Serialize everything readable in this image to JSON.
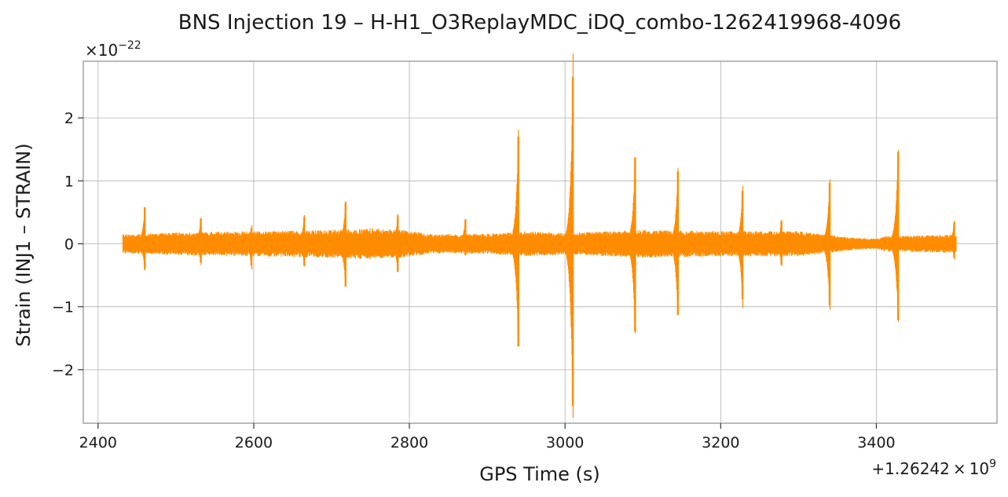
{
  "chart_data": {
    "type": "line",
    "title": "BNS Injection 19 – H-H1_O3ReplayMDC_iDQ_combo-1262419968-4096",
    "xlabel": "GPS Time (s)",
    "ylabel": "Strain (INJ1 – STRAIN)",
    "x_offset_label": {
      "base": "+1.26242 × 10",
      "exp": "9"
    },
    "y_scale_label": {
      "base": "×10",
      "exp": "−22"
    },
    "x_ticks": [
      2400,
      2600,
      2800,
      3000,
      3200,
      3400
    ],
    "x_tick_labels": [
      "2400",
      "2600",
      "2800",
      "3000",
      "3200",
      "3400"
    ],
    "y_ticks": [
      -2,
      -1,
      0,
      1,
      2
    ],
    "y_tick_labels": [
      "−2",
      "−1",
      "0",
      "1",
      "2"
    ],
    "xlim": [
      2381,
      3555
    ],
    "ylim": [
      -2.85,
      2.9
    ],
    "grid": true,
    "line_color": "#ff8c00",
    "noise": {
      "x_start": 2432,
      "x_end": 3503,
      "envelope_x": [
        2432,
        2500,
        2600,
        2700,
        2750,
        2790,
        2830,
        2900,
        2950,
        3000,
        3100,
        3200,
        3300,
        3370,
        3400,
        3410,
        3480,
        3503
      ],
      "envelope_y": [
        0.15,
        0.18,
        0.2,
        0.22,
        0.25,
        0.22,
        0.15,
        0.16,
        0.2,
        0.17,
        0.22,
        0.2,
        0.2,
        0.1,
        0.08,
        0.12,
        0.14,
        0.14
      ]
    },
    "spikes": [
      {
        "t": 2460,
        "max": 0.58,
        "min": -0.4
      },
      {
        "t": 2532,
        "max": 0.4,
        "min": -0.3
      },
      {
        "t": 2597,
        "max": 0.25,
        "min": -0.35
      },
      {
        "t": 2665,
        "max": 0.43,
        "min": -0.35
      },
      {
        "t": 2718,
        "max": 0.66,
        "min": -0.68
      },
      {
        "t": 2785,
        "max": 0.45,
        "min": -0.44
      },
      {
        "t": 2872,
        "max": 0.39,
        "min": -0.18
      },
      {
        "t": 2940,
        "max": 1.7,
        "min": -1.63
      },
      {
        "t": 3010,
        "max": 2.65,
        "min": -2.58
      },
      {
        "t": 3090,
        "max": 1.37,
        "min": -1.39
      },
      {
        "t": 3145,
        "max": 1.15,
        "min": -1.13
      },
      {
        "t": 3228,
        "max": 0.84,
        "min": -0.88
      },
      {
        "t": 3278,
        "max": 0.36,
        "min": -0.33
      },
      {
        "t": 3340,
        "max": 0.97,
        "min": -0.98
      },
      {
        "t": 3428,
        "max": 1.46,
        "min": -1.21
      },
      {
        "t": 3500,
        "max": 0.34,
        "min": -0.22
      }
    ]
  }
}
